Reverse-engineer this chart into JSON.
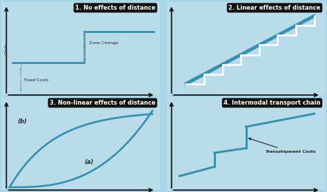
{
  "outer_bg": "#a8d4e6",
  "title1": "1. No effects of distance",
  "title2": "2. Linear effects of distance",
  "title3": "3. Non-linear effects of distance",
  "title4": "4. Intermodal transport chain",
  "title_bg": "#111111",
  "title_fg": "#ffffff",
  "line_color": "#3a8faf",
  "line_color2": "#ffffff",
  "axis_color": "#111111",
  "label_color": "#222222",
  "panel_bg": "#b8dcea",
  "dashed_color": "#7aabbb"
}
